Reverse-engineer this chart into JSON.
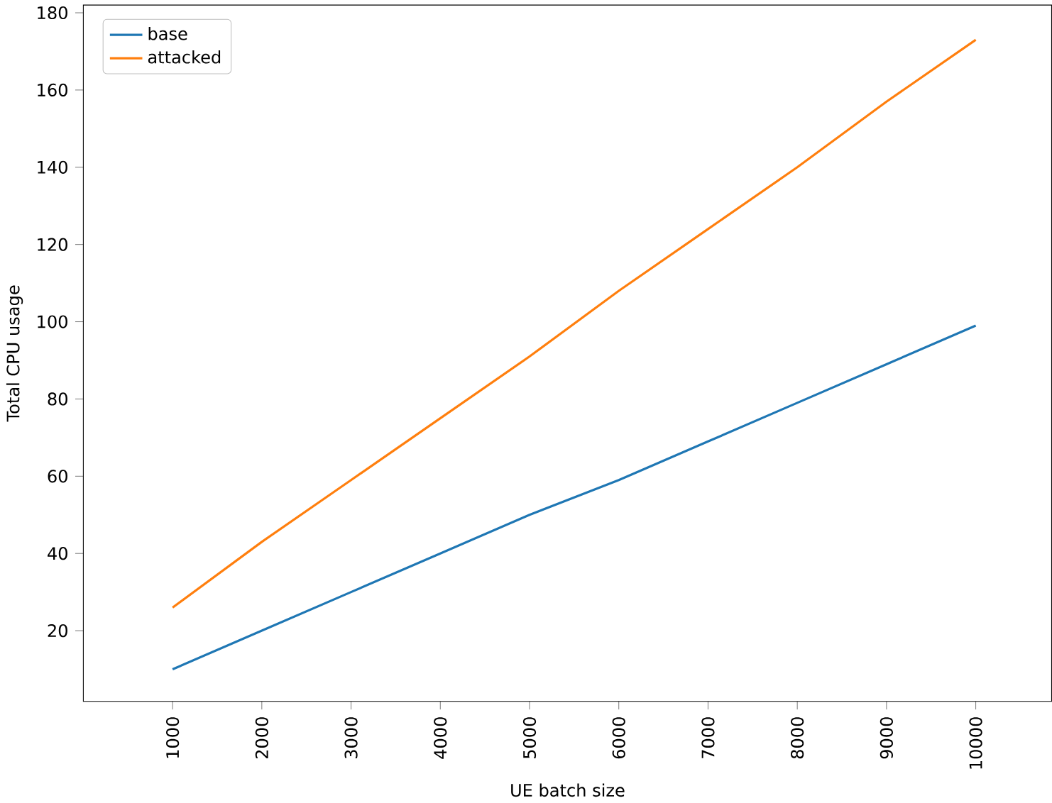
{
  "chart_data": {
    "type": "line",
    "xlabel": "UE batch size",
    "ylabel": "Total CPU usage",
    "x": [
      1000,
      2000,
      3000,
      4000,
      5000,
      6000,
      7000,
      8000,
      9000,
      10000
    ],
    "series": [
      {
        "name": "base",
        "color": "#1f77b4",
        "values": [
          10,
          20,
          30,
          40,
          50,
          59,
          69,
          79,
          89,
          99
        ]
      },
      {
        "name": "attacked",
        "color": "#ff7f0e",
        "values": [
          26,
          43,
          59,
          75,
          91,
          108,
          124,
          140,
          157,
          173
        ]
      }
    ],
    "xlim": [
      0,
      10850
    ],
    "ylim": [
      1.7,
      182
    ],
    "xticks": [
      1000,
      2000,
      3000,
      4000,
      5000,
      6000,
      7000,
      8000,
      9000,
      10000
    ],
    "yticks": [
      20,
      40,
      60,
      80,
      100,
      120,
      140,
      160,
      180
    ],
    "grid": false,
    "legend": "top left",
    "marker": "none",
    "line_style": "solid"
  }
}
